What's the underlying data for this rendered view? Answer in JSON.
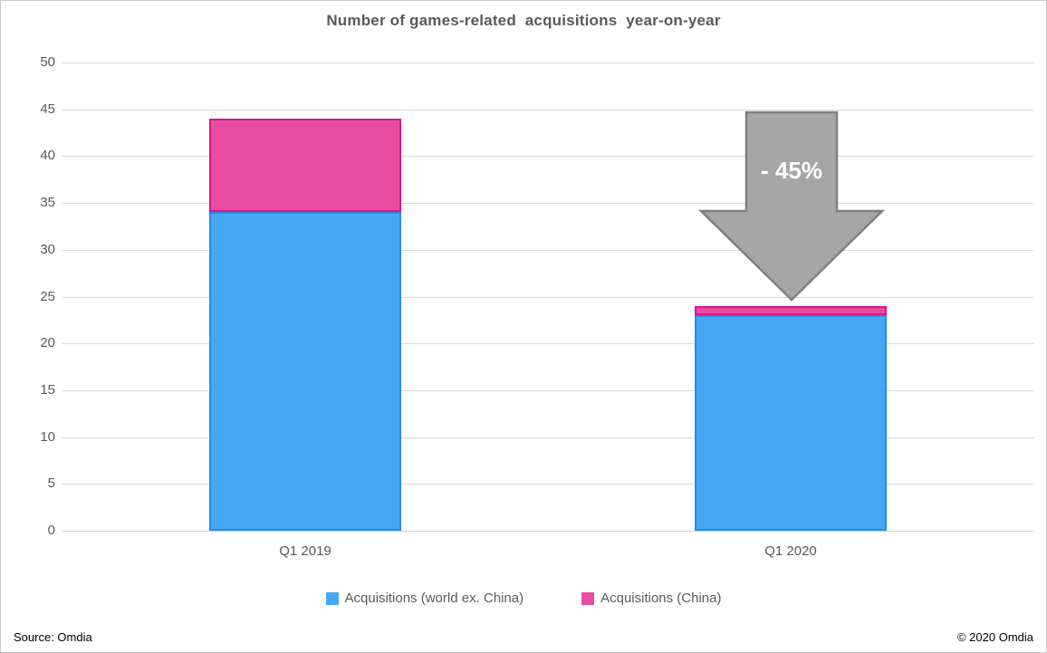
{
  "page": {
    "footer_source": "Source: Omdia",
    "footer_copyright": "© 2020 Omdia"
  },
  "chart_data": {
    "type": "bar",
    "stacked": true,
    "title": "Number of games-related  acquisitions  year-on-year",
    "categories": [
      "Q1 2019",
      "Q1 2020"
    ],
    "series": [
      {
        "name": "Acquisitions (world ex. China)",
        "values": [
          34,
          23
        ],
        "color": "#45a7f3",
        "border_color": "#2a8ce0"
      },
      {
        "name": "Acquisitions (China)",
        "values": [
          10,
          1
        ],
        "color": "#e84ca0",
        "border_color": "#d6158b"
      }
    ],
    "totals": [
      44,
      24
    ],
    "ylim": [
      0,
      50
    ],
    "ytick_step": 5,
    "grid": true,
    "gridline_color": "#d9d9d9",
    "legend_position": "bottom",
    "annotation": {
      "label": "- 45%",
      "shape": "down-arrow",
      "fill": "#a6a6a6",
      "stroke": "#7f7f7f",
      "text_color": "#ffffff",
      "applies_to": "Q1 2020"
    }
  }
}
